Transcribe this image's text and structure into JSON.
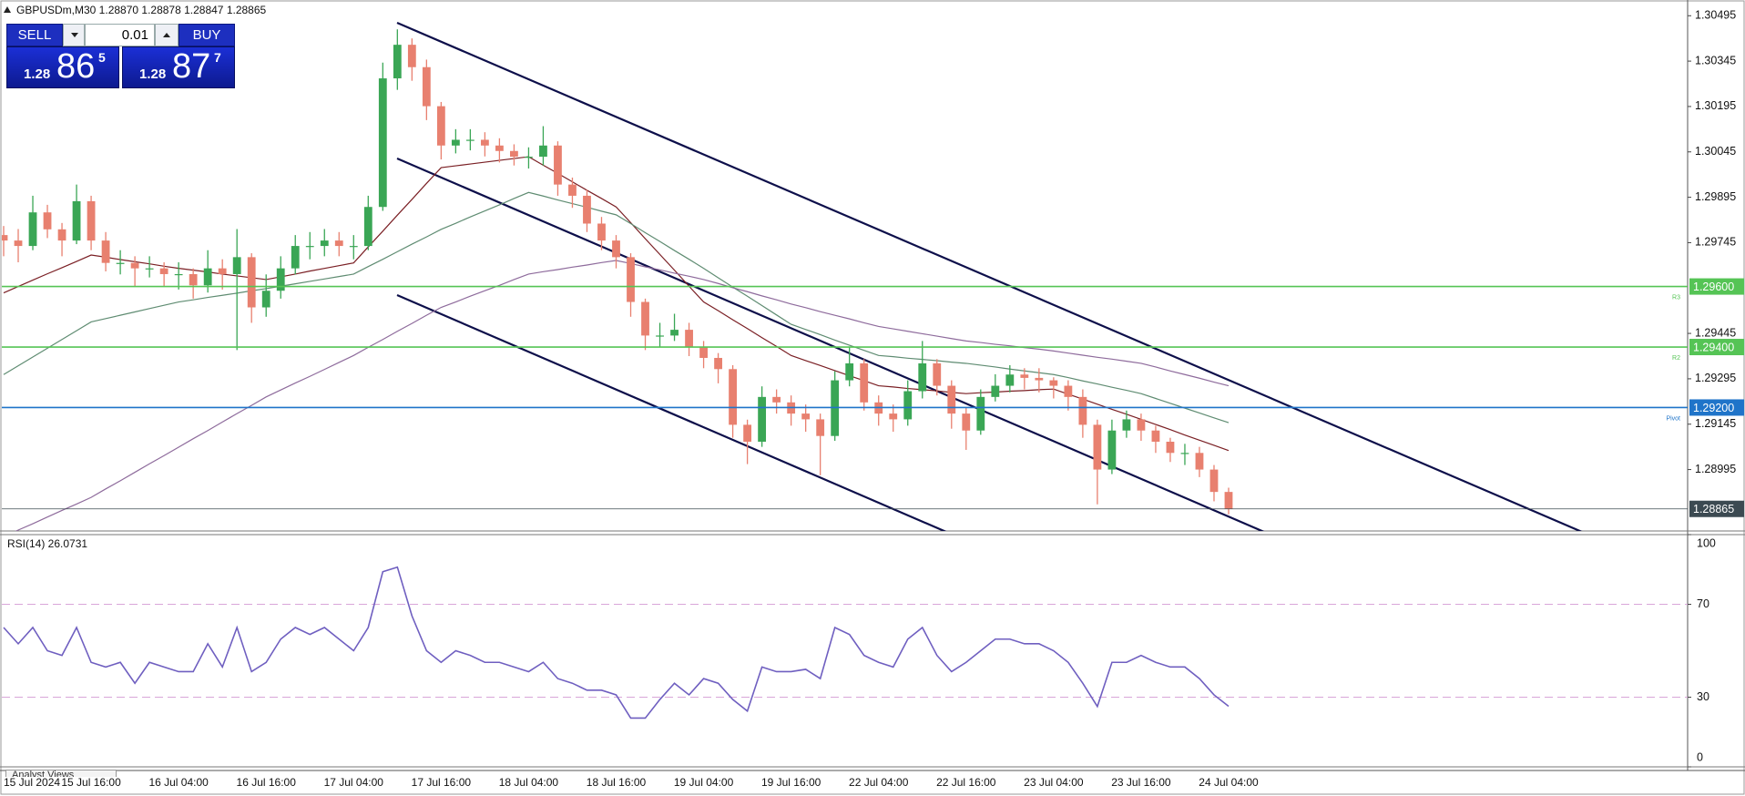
{
  "header": {
    "title": "GBPUSDm,M30  1.28870 1.28878 1.28847 1.28865"
  },
  "trade_panel": {
    "sell": "SELL",
    "buy": "BUY",
    "volume": "0.01",
    "bid": {
      "big_figure": "1.28",
      "pips": "86",
      "point": "5"
    },
    "ask": {
      "big_figure": "1.28",
      "pips": "87",
      "point": "7"
    }
  },
  "footer": {
    "tab": "Analyst Views"
  },
  "chart_data": [
    {
      "type": "candlestick",
      "categories": [
        "15 Jul 2024",
        null,
        null,
        null,
        null,
        null,
        "15 Jul 16:00",
        null,
        null,
        null,
        null,
        null,
        "16 Jul 04:00",
        null,
        null,
        null,
        null,
        null,
        "16 Jul 16:00",
        null,
        null,
        null,
        null,
        null,
        "17 Jul 04:00",
        null,
        null,
        null,
        null,
        null,
        "17 Jul 16:00",
        null,
        null,
        null,
        null,
        null,
        "18 Jul 04:00",
        null,
        null,
        null,
        null,
        null,
        "18 Jul 16:00",
        null,
        null,
        null,
        null,
        null,
        "19 Jul 04:00",
        null,
        null,
        null,
        null,
        null,
        "19 Jul 16:00",
        null,
        null,
        null,
        null,
        null,
        "22 Jul 04:00",
        null,
        null,
        null,
        null,
        null,
        "22 Jul 16:00",
        null,
        null,
        null,
        null,
        null,
        "23 Jul 04:00",
        null,
        null,
        null,
        null,
        null,
        "23 Jul 16:00",
        null,
        null,
        null,
        null,
        null,
        "24 Jul 04:00"
      ],
      "open": [
        1.2977,
        1.29752,
        1.29734,
        1.29845,
        1.29789,
        1.29752,
        1.29882,
        1.29752,
        1.29678,
        1.29678,
        1.2966,
        1.2966,
        1.29641,
        1.29641,
        1.29604,
        1.2966,
        1.29641,
        1.29697,
        1.29531,
        1.29586,
        1.2966,
        1.29734,
        1.29734,
        1.29752,
        1.29734,
        1.29734,
        1.29863,
        1.30288,
        1.30399,
        1.30325,
        1.30196,
        1.30066,
        1.30085,
        1.30085,
        1.30066,
        1.30048,
        1.30029,
        1.30029,
        1.30066,
        1.29937,
        1.299,
        1.29808,
        1.29752,
        1.29697,
        1.29549,
        1.29438,
        1.29438,
        1.29457,
        1.29401,
        1.29364,
        1.29327,
        1.29143,
        1.29087,
        1.29235,
        1.29217,
        1.2918,
        1.29161,
        1.29106,
        1.2929,
        1.29346,
        1.29217,
        1.2918,
        1.29161,
        1.29254,
        1.29346,
        1.29272,
        1.2918,
        1.29124,
        1.29235,
        1.29272,
        1.29309,
        1.29298,
        1.2929,
        1.29272,
        1.29235,
        1.29143,
        1.28995,
        1.29124,
        1.29161,
        1.29124,
        1.29087,
        1.2905,
        1.2905,
        1.28995,
        1.28921
      ],
      "high": [
        1.298,
        1.2979,
        1.299,
        1.2987,
        1.2981,
        1.29937,
        1.299,
        1.2978,
        1.2972,
        1.297,
        1.297,
        1.2968,
        1.2968,
        1.2966,
        1.2972,
        1.2969,
        1.2979,
        1.2971,
        1.2964,
        1.297,
        1.2977,
        1.2978,
        1.2979,
        1.2978,
        1.2977,
        1.299,
        1.3034,
        1.3045,
        1.3042,
        1.3035,
        1.3021,
        1.3012,
        1.3012,
        1.3011,
        1.3009,
        1.3007,
        1.3006,
        1.3013,
        1.3008,
        1.2996,
        1.2992,
        1.2983,
        1.2977,
        1.2971,
        1.2956,
        1.2948,
        1.2951,
        1.2948,
        1.2942,
        1.2938,
        1.2934,
        1.2916,
        1.2927,
        1.2926,
        1.2924,
        1.2921,
        1.2918,
        1.2932,
        1.294,
        1.2936,
        1.2924,
        1.2921,
        1.2929,
        1.2942,
        1.2936,
        1.2929,
        1.292,
        1.2926,
        1.2931,
        1.2934,
        1.2933,
        1.2933,
        1.293,
        1.2929,
        1.2926,
        1.2916,
        1.2916,
        1.2919,
        1.2918,
        1.2914,
        1.291,
        1.2908,
        1.2907,
        1.2901,
        1.28935
      ],
      "low": [
        1.297,
        1.2968,
        1.2972,
        1.2976,
        1.297,
        1.2974,
        1.2972,
        1.2965,
        1.2964,
        1.296,
        1.2963,
        1.296,
        1.2959,
        1.2956,
        1.2958,
        1.2959,
        1.2939,
        1.2948,
        1.295,
        1.2956,
        1.2964,
        1.2969,
        1.297,
        1.297,
        1.2969,
        1.2972,
        1.2985,
        1.3025,
        1.3028,
        1.3015,
        1.3002,
        1.3004,
        1.3005,
        1.3003,
        1.3001,
        1.3,
        1.2999,
        1.3,
        1.299,
        1.2986,
        1.2978,
        1.2972,
        1.2966,
        1.295,
        1.2939,
        1.294,
        1.2942,
        1.2937,
        1.2933,
        1.2928,
        1.291,
        1.29013,
        1.2907,
        1.2918,
        1.2914,
        1.2912,
        1.28976,
        1.2909,
        1.2927,
        1.2919,
        1.2914,
        1.2912,
        1.2914,
        1.2923,
        1.2924,
        1.2913,
        1.2906,
        1.2911,
        1.2922,
        1.2925,
        1.2926,
        1.2925,
        1.2923,
        1.2919,
        1.291,
        1.2888,
        1.2898,
        1.291,
        1.2909,
        1.2905,
        1.2902,
        1.2901,
        1.2897,
        1.2889,
        1.28847
      ],
      "close": [
        1.29752,
        1.29734,
        1.29845,
        1.29789,
        1.29752,
        1.29882,
        1.29752,
        1.29678,
        1.29678,
        1.2966,
        1.2966,
        1.29641,
        1.29641,
        1.29604,
        1.2966,
        1.29641,
        1.29697,
        1.29531,
        1.29586,
        1.2966,
        1.29734,
        1.29734,
        1.29752,
        1.29734,
        1.29734,
        1.29863,
        1.30288,
        1.30399,
        1.30325,
        1.30196,
        1.30066,
        1.30085,
        1.30085,
        1.30066,
        1.30048,
        1.30029,
        1.30029,
        1.30066,
        1.29937,
        1.299,
        1.29808,
        1.29752,
        1.29697,
        1.29549,
        1.29438,
        1.29438,
        1.29457,
        1.29401,
        1.29364,
        1.29327,
        1.29143,
        1.29087,
        1.29235,
        1.29217,
        1.2918,
        1.29161,
        1.29106,
        1.2929,
        1.29346,
        1.29217,
        1.2918,
        1.29161,
        1.29254,
        1.29346,
        1.29272,
        1.2918,
        1.29124,
        1.29235,
        1.29272,
        1.29309,
        1.29298,
        1.2929,
        1.29272,
        1.29235,
        1.29143,
        1.28995,
        1.29124,
        1.29161,
        1.29124,
        1.29087,
        1.2905,
        1.2905,
        1.28995,
        1.28921,
        1.28865
      ],
      "up_color": "#3aa655",
      "down_color": "#e8806f",
      "series": [
        {
          "color": "#7a1f24",
          "values": [
            1.29579,
            1.296,
            1.29621,
            1.29642,
            1.29662,
            1.29683,
            1.29704,
            1.29697,
            1.29689,
            1.29682,
            1.29675,
            1.29667,
            1.2966,
            1.29654,
            1.29648,
            1.29641,
            1.29635,
            1.29629,
            1.29623,
            1.29632,
            1.29641,
            1.29651,
            1.2966,
            1.29669,
            1.29678,
            1.29731,
            1.29783,
            1.29836,
            1.29888,
            1.29941,
            1.29993,
            1.29999,
            1.30005,
            1.30011,
            1.30017,
            1.30023,
            1.30029,
            1.30001,
            1.29974,
            1.29946,
            1.29918,
            1.29891,
            1.29863,
            1.29811,
            1.29758,
            1.29706,
            1.29654,
            1.29601,
            1.29549,
            1.2952,
            1.2949,
            1.29461,
            1.29431,
            1.29402,
            1.29372,
            1.29355,
            1.29339,
            1.29322,
            1.29305,
            1.29289,
            1.29272,
            1.29268,
            1.29263,
            1.29259,
            1.29255,
            1.2925,
            1.29246,
            1.29249,
            1.29251,
            1.29254,
            1.29256,
            1.29259,
            1.29261,
            1.29244,
            1.29228,
            1.29211,
            1.29194,
            1.29178,
            1.29161,
            1.29144,
            1.29127,
            1.29109,
            1.29092,
            1.29075,
            1.29058
          ]
        },
        {
          "color": "#5f8c72",
          "values": [
            1.29309,
            1.29338,
            1.29367,
            1.29396,
            1.29425,
            1.29454,
            1.29483,
            1.29494,
            1.29505,
            1.29516,
            1.29527,
            1.29538,
            1.29549,
            1.29556,
            1.29564,
            1.29571,
            1.29578,
            1.29586,
            1.29593,
            1.29601,
            1.29609,
            1.29617,
            1.29625,
            1.29633,
            1.29641,
            1.29666,
            1.2969,
            1.29715,
            1.2974,
            1.29764,
            1.29789,
            1.29809,
            1.2983,
            1.2985,
            1.2987,
            1.29891,
            1.29911,
            1.29899,
            1.29886,
            1.29874,
            1.29862,
            1.29849,
            1.29837,
            1.29808,
            1.29778,
            1.29749,
            1.29719,
            1.2969,
            1.2966,
            1.29629,
            1.29598,
            1.29568,
            1.29537,
            1.29506,
            1.29475,
            1.29458,
            1.29441,
            1.29423,
            1.29406,
            1.29389,
            1.29372,
            1.29368,
            1.29363,
            1.29359,
            1.29355,
            1.2935,
            1.29346,
            1.2934,
            1.29334,
            1.29327,
            1.29321,
            1.29315,
            1.29309,
            1.29299,
            1.29288,
            1.29278,
            1.29267,
            1.29257,
            1.29246,
            1.2923,
            1.29214,
            1.29198,
            1.29182,
            1.29166,
            1.2915
          ]
        },
        {
          "color": "#8e6b9c",
          "values": [
            1.28773,
            1.28795,
            1.28816,
            1.28838,
            1.2886,
            1.28881,
            1.28903,
            1.28931,
            1.28958,
            1.28986,
            1.29014,
            1.29041,
            1.29069,
            1.29097,
            1.29124,
            1.29152,
            1.2918,
            1.29207,
            1.29235,
            1.29258,
            1.29281,
            1.29303,
            1.29326,
            1.29349,
            1.29372,
            1.29399,
            1.29425,
            1.29452,
            1.29478,
            1.29505,
            1.29531,
            1.29549,
            1.29568,
            1.29586,
            1.29604,
            1.29623,
            1.29641,
            1.29649,
            1.29656,
            1.29664,
            1.29671,
            1.29679,
            1.29686,
            1.29676,
            1.29665,
            1.29655,
            1.29644,
            1.29634,
            1.29623,
            1.2961,
            1.29596,
            1.29583,
            1.29569,
            1.29556,
            1.29542,
            1.2953,
            1.29517,
            1.29505,
            1.29493,
            1.2948,
            1.29468,
            1.2946,
            1.29452,
            1.29444,
            1.29436,
            1.29428,
            1.2942,
            1.29415,
            1.29409,
            1.29404,
            1.29398,
            1.29393,
            1.29387,
            1.2938,
            1.29373,
            1.29366,
            1.2936,
            1.29353,
            1.29346,
            1.29334,
            1.29321,
            1.29309,
            1.29297,
            1.29284,
            1.29272
          ]
        }
      ],
      "ylim": [
        1.28792,
        1.30547
      ],
      "yticks": [
        1.30495,
        1.30345,
        {
          "value": 1.30195,
          "label": "1.30195"
        },
        1.30045,
        1.29895,
        1.29745,
        1.29445,
        1.29295,
        1.29145,
        1.28995
      ],
      "levels": [
        {
          "value": 1.296,
          "label": "1.29600",
          "name": "R3",
          "color": "#55c455"
        },
        {
          "value": 1.294,
          "label": "1.29400",
          "name": "R2",
          "color": "#55c455"
        },
        {
          "value": 1.292,
          "label": "1.29200",
          "name": "Pivot",
          "color": "#1f74c9"
        },
        {
          "value": 1.28865,
          "label": "1.28865",
          "color": "#3c4a52"
        }
      ]
    },
    {
      "type": "line",
      "title": "RSI(14) 26.0731",
      "color": "#6f5fc0",
      "values": [
        60,
        53,
        60,
        50,
        48,
        60,
        45,
        43,
        45,
        36,
        45,
        43,
        41,
        41,
        53,
        43,
        60,
        41,
        45,
        55,
        60,
        57,
        60,
        55,
        50,
        60,
        84,
        86,
        65,
        50,
        45,
        50,
        48,
        45,
        45,
        43,
        41,
        45,
        38,
        36,
        33,
        33,
        31,
        21,
        21,
        29,
        36,
        31,
        38,
        36,
        29,
        24,
        43,
        41,
        41,
        42,
        38,
        60,
        57,
        48,
        45,
        43,
        55,
        60,
        48,
        41,
        45,
        50,
        55,
        55,
        53,
        53,
        50,
        45,
        36,
        26,
        45,
        45,
        48,
        45,
        43,
        43,
        38,
        31,
        26.0731
      ],
      "ylim": [
        0,
        100
      ],
      "yticks": [
        0,
        30,
        70,
        100
      ],
      "levels": [
        30,
        70
      ],
      "level_color": "#d9a6d9"
    }
  ]
}
